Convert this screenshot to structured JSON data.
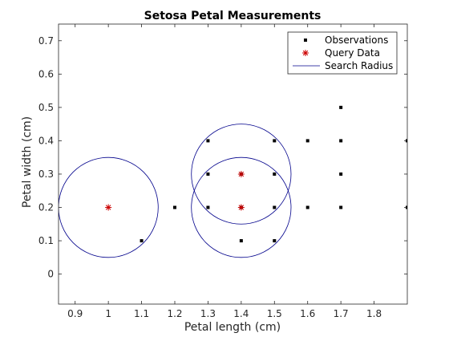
{
  "chart_data": {
    "type": "scatter",
    "title": "Setosa Petal Measurements",
    "xlabel": "Petal length (cm)",
    "ylabel": "Petal width (cm)",
    "xlim": [
      0.85,
      1.9
    ],
    "ylim": [
      -0.09,
      0.75
    ],
    "xticks": [
      0.9,
      1,
      1.1,
      1.2,
      1.3,
      1.4,
      1.5,
      1.6,
      1.7,
      1.8
    ],
    "xtick_labels": [
      "0.9",
      "1",
      "1.1",
      "1.2",
      "1.3",
      "1.4",
      "1.5",
      "1.6",
      "1.7",
      "1.8"
    ],
    "yticks": [
      0,
      0.1,
      0.2,
      0.3,
      0.4,
      0.5,
      0.6,
      0.7
    ],
    "ytick_labels": [
      "0",
      "0.1",
      "0.2",
      "0.3",
      "0.4",
      "0.5",
      "0.6",
      "0.7"
    ],
    "grid": false,
    "legend_position": "top-right",
    "series": [
      {
        "name": "Observations",
        "marker": "square",
        "color": "#000000",
        "points": [
          [
            1.1,
            0.1
          ],
          [
            1.2,
            0.2
          ],
          [
            1.3,
            0.2
          ],
          [
            1.3,
            0.3
          ],
          [
            1.3,
            0.4
          ],
          [
            1.4,
            0.1
          ],
          [
            1.4,
            0.2
          ],
          [
            1.4,
            0.3
          ],
          [
            1.5,
            0.1
          ],
          [
            1.5,
            0.2
          ],
          [
            1.5,
            0.3
          ],
          [
            1.5,
            0.4
          ],
          [
            1.6,
            0.2
          ],
          [
            1.6,
            0.4
          ],
          [
            1.7,
            0.2
          ],
          [
            1.7,
            0.3
          ],
          [
            1.7,
            0.4
          ],
          [
            1.7,
            0.5
          ],
          [
            1.9,
            0.2
          ],
          [
            1.9,
            0.4
          ]
        ]
      },
      {
        "name": "Query Data",
        "marker": "asterisk",
        "color": "#cc0000",
        "points": [
          [
            1.0,
            0.2
          ],
          [
            1.4,
            0.2
          ],
          [
            1.4,
            0.3
          ]
        ]
      },
      {
        "name": "Search Radius",
        "marker": "circle-line",
        "color": "#00008b",
        "radius": 0.15,
        "centers": [
          [
            1.0,
            0.2
          ],
          [
            1.4,
            0.2
          ],
          [
            1.4,
            0.3
          ]
        ]
      }
    ]
  }
}
